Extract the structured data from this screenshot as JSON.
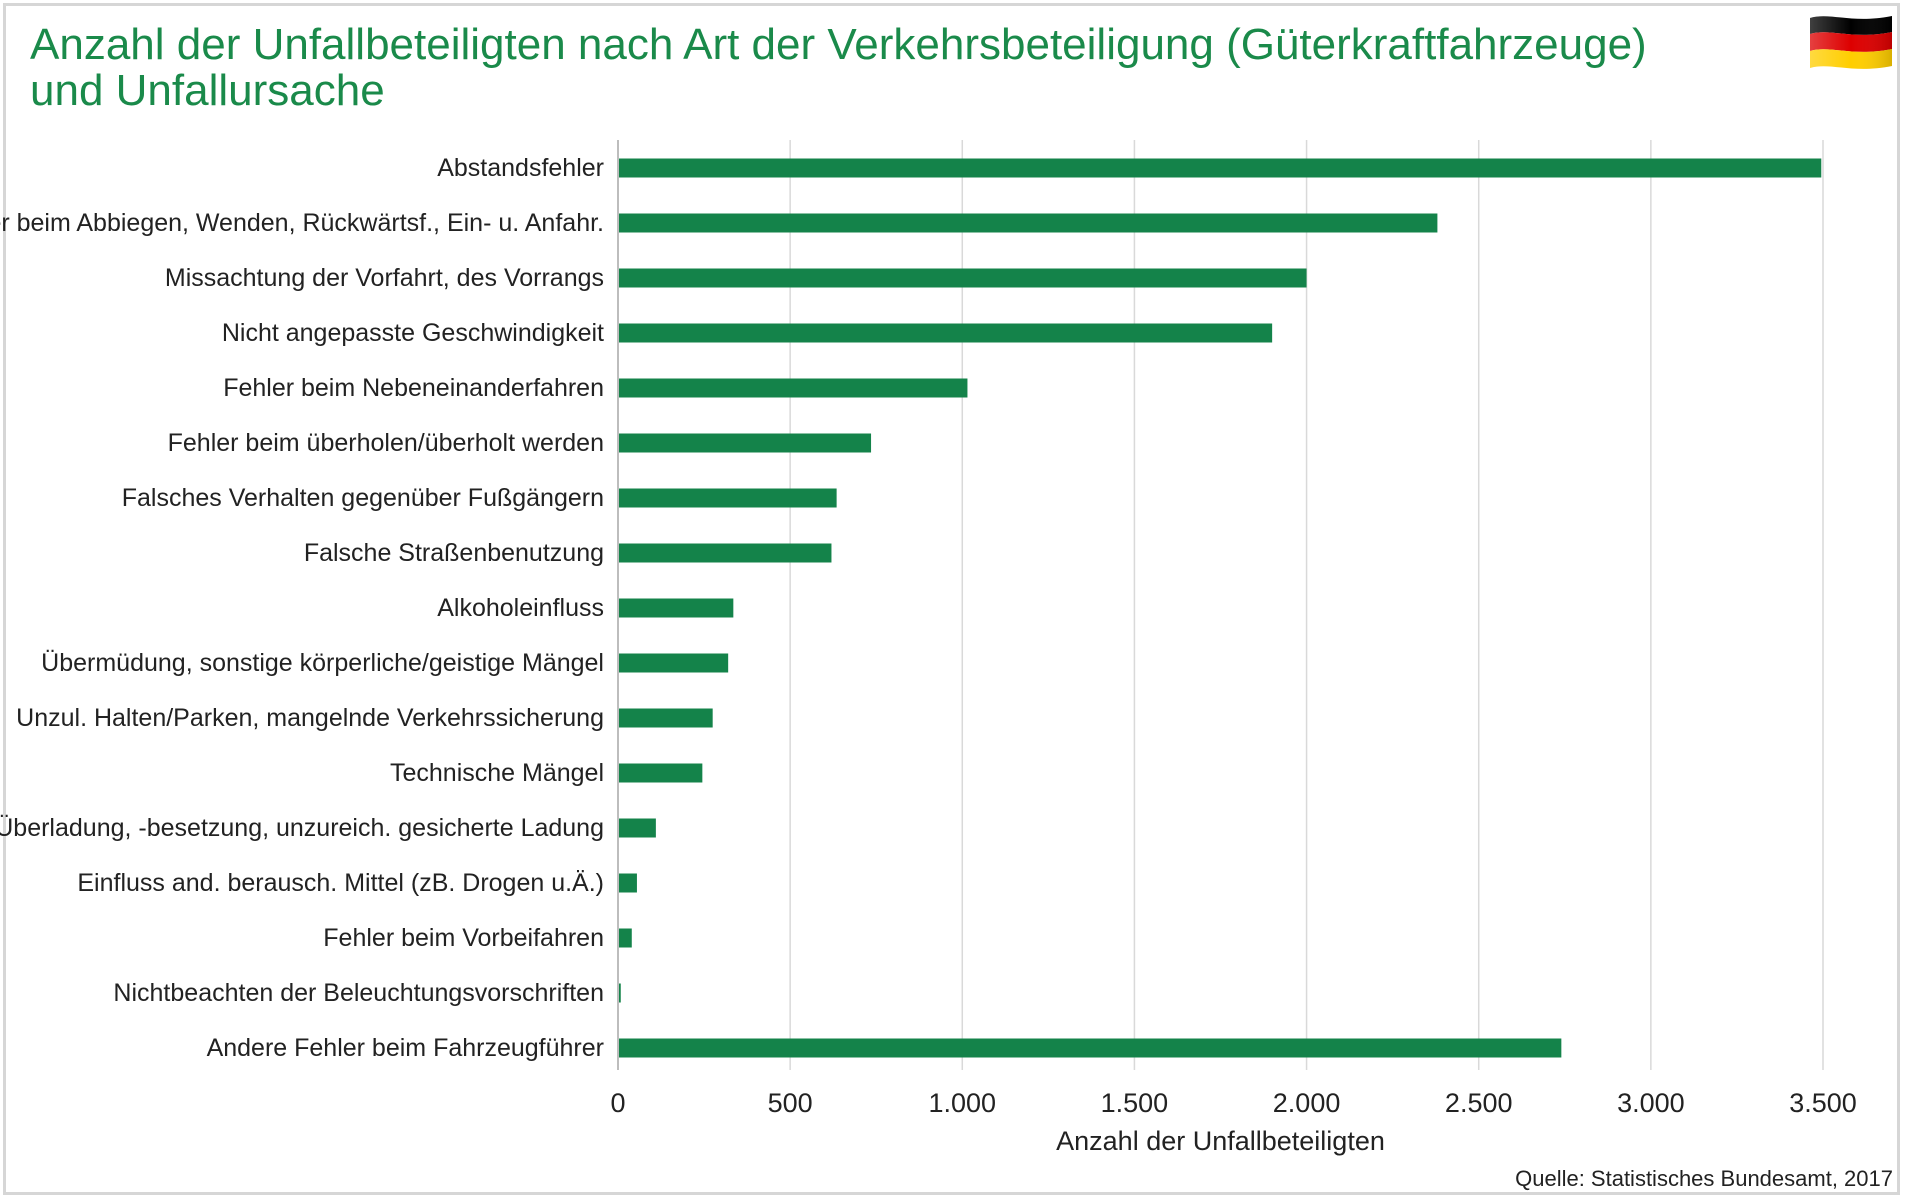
{
  "header": {
    "title": "Anzahl der Unfallbeteiligten nach Art der Verkehrsbeteiligung (Güterkraftfahrzeuge) und Unfallursache"
  },
  "flag": {
    "icon": "germany-flag-icon",
    "colors": [
      "#000000",
      "#dd0000",
      "#ffce00"
    ]
  },
  "source": "Quelle: Statistisches Bundesamt, 2017",
  "chart_data": {
    "type": "bar",
    "orientation": "horizontal",
    "title": "Anzahl der Unfallbeteiligten nach Art der Verkehrsbeteiligung (Güterkraftfahrzeuge) und Unfallursache",
    "xlabel": "Anzahl der Unfallbeteiligten",
    "ylabel": "",
    "xlim": [
      0,
      3500
    ],
    "xticks": [
      0,
      500,
      1000,
      1500,
      2000,
      2500,
      3000,
      3500
    ],
    "xtick_labels": [
      "0",
      "500",
      "1.000",
      "1.500",
      "2.000",
      "2.500",
      "3.000",
      "3.500"
    ],
    "grid": "vertical",
    "bar_color": "#14834a",
    "categories": [
      "Abstandsfehler",
      "Fehler beim Abbiegen, Wenden, Rückwärtsf., Ein- u. Anfahr.",
      "Missachtung der Vorfahrt, des Vorrangs",
      "Nicht angepasste Geschwindigkeit",
      "Fehler beim Nebeneinanderfahren",
      "Fehler beim überholen/überholt werden",
      "Falsches Verhalten gegenüber Fußgängern",
      "Falsche Straßenbenutzung",
      "Alkoholeinfluss",
      "Übermüdung, sonstige körperliche/geistige Mängel",
      "Unzul. Halten/Parken, mangelnde Verkehrssicherung",
      "Technische Mängel",
      "Überladung, -besetzung, unzureich. gesicherte Ladung",
      "Einfluss and. berausch. Mittel (zB. Drogen u.Ä.)",
      "Fehler beim Vorbeifahren",
      "Nichtbeachten der Beleuchtungsvorschriften",
      "Andere Fehler beim Fahrzeugführer"
    ],
    "values": [
      3495,
      2380,
      2000,
      1900,
      1015,
      735,
      635,
      620,
      335,
      320,
      275,
      245,
      110,
      55,
      40,
      8,
      2740
    ]
  }
}
